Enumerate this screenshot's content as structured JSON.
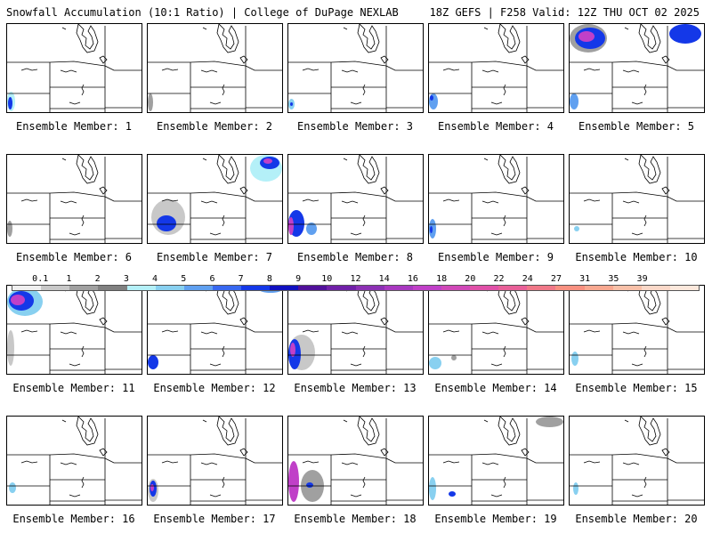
{
  "header": {
    "title": "Snowfall Accumulation (10:1 Ratio) | College of DuPage NEXLAB",
    "run_info": "18Z GEFS | F258 Valid: 12Z THU OCT 02 2025"
  },
  "colorbar": {
    "ticks": [
      "0.1",
      "1",
      "2",
      "3",
      "4",
      "5",
      "6",
      "7",
      "8",
      "9",
      "10",
      "12",
      "14",
      "16",
      "18",
      "20",
      "22",
      "24",
      "27",
      "31",
      "35",
      "39"
    ],
    "colors": [
      "#f0f0f0",
      "#c8c8c8",
      "#a0a0a0",
      "#808080",
      "#b4f0f8",
      "#88d0f0",
      "#60a0f0",
      "#3868f0",
      "#1438e8",
      "#1010c0",
      "#50109a",
      "#7020a8",
      "#8c30b4",
      "#a838c0",
      "#c040c8",
      "#d048b8",
      "#e050a8",
      "#e86098",
      "#f07888",
      "#f89080",
      "#f8a890",
      "#f8c0a8",
      "#fad8c8",
      "#fce8dc"
    ]
  },
  "members": [
    {
      "label": "Ensemble Member: 1"
    },
    {
      "label": "Ensemble Member: 2"
    },
    {
      "label": "Ensemble Member: 3"
    },
    {
      "label": "Ensemble Member: 4"
    },
    {
      "label": "Ensemble Member: 5"
    },
    {
      "label": "Ensemble Member: 6"
    },
    {
      "label": "Ensemble Member: 7"
    },
    {
      "label": "Ensemble Member: 8"
    },
    {
      "label": "Ensemble Member: 9"
    },
    {
      "label": "Ensemble Member: 10"
    },
    {
      "label": "Ensemble Member: 11"
    },
    {
      "label": "Ensemble Member: 12"
    },
    {
      "label": "Ensemble Member: 13"
    },
    {
      "label": "Ensemble Member: 14"
    },
    {
      "label": "Ensemble Member: 15"
    },
    {
      "label": "Ensemble Member: 16"
    },
    {
      "label": "Ensemble Member: 17"
    },
    {
      "label": "Ensemble Member: 18"
    },
    {
      "label": "Ensemble Member: 19"
    },
    {
      "label": "Ensemble Member: 20"
    }
  ]
}
